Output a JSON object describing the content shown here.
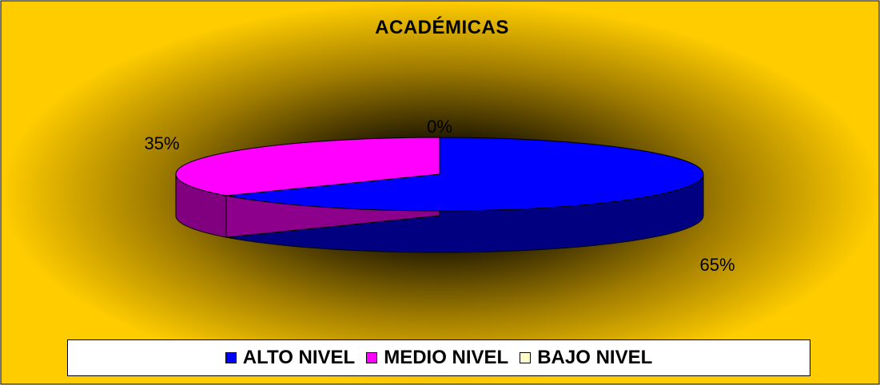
{
  "chart_data": {
    "type": "pie",
    "title": "ACADÉMICAS",
    "categories": [
      "ALTO NIVEL",
      "MEDIO NIVEL",
      "BAJO NIVEL"
    ],
    "values": [
      65,
      35,
      0
    ],
    "data_labels": [
      "65%",
      "35%",
      "0%"
    ],
    "colors": [
      "#0000FF",
      "#FF00FF",
      "#FFFFCC"
    ],
    "legend_position": "bottom",
    "style": "3d-pie",
    "background": "radial gold-to-dark gradient"
  }
}
